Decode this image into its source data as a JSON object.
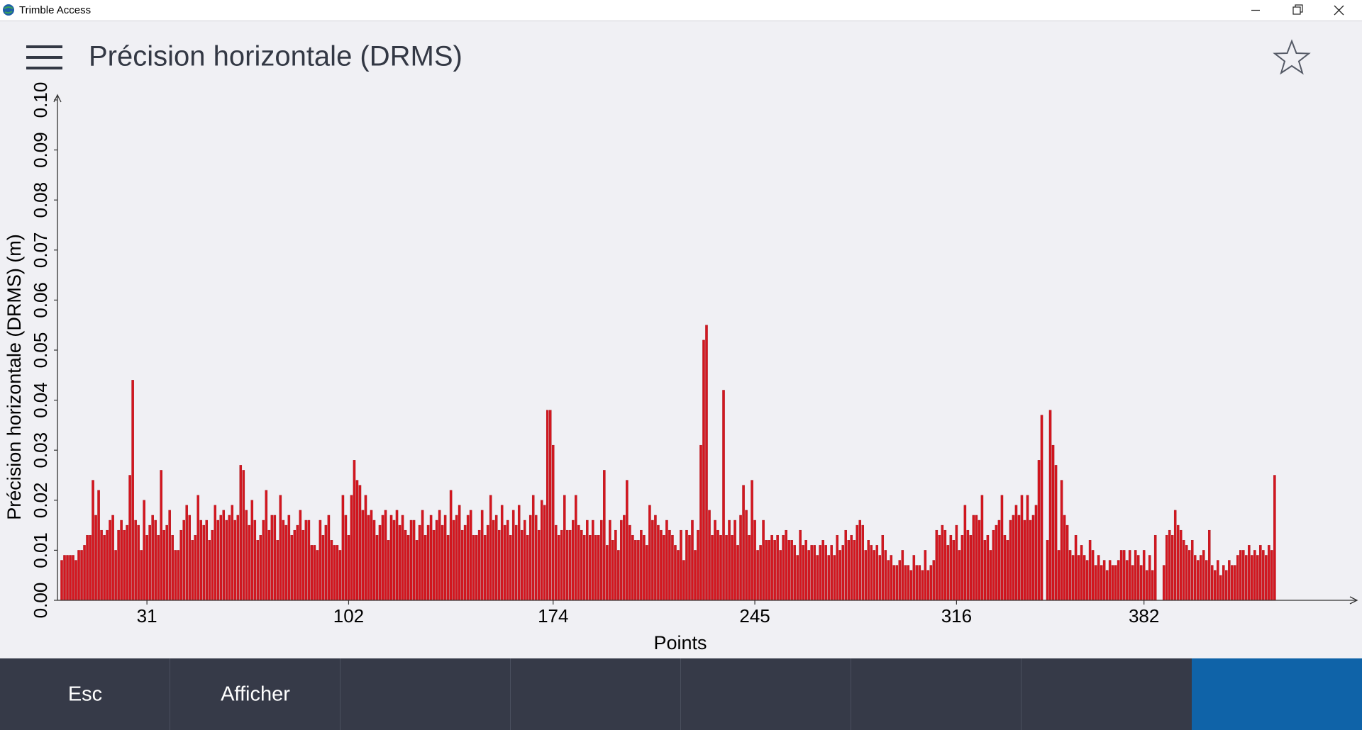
{
  "window": {
    "title": "Trimble Access"
  },
  "chart_data": {
    "type": "bar",
    "title": "Précision horizontale (DRMS)",
    "x_label": "Points",
    "y_label": "Précision horizontale (DRMS) (m)",
    "color": "#d4161f",
    "xlim": [
      0,
      457
    ],
    "xticks": [
      31,
      102,
      174,
      245,
      316,
      382
    ],
    "ylim": [
      0,
      0.1
    ],
    "yticks": [
      {
        "value": 0,
        "label": "0.00"
      },
      {
        "value": 0.01,
        "label": "0.01"
      },
      {
        "value": 0.02,
        "label": "0.02"
      },
      {
        "value": 0.03,
        "label": "0.03"
      },
      {
        "value": 0.04,
        "label": "0.04"
      },
      {
        "value": 0.05,
        "label": "0.05"
      },
      {
        "value": 0.06,
        "label": "0.06"
      },
      {
        "value": 0.07,
        "label": "0.07"
      },
      {
        "value": 0.08,
        "label": "0.08"
      },
      {
        "value": 0.09,
        "label": "0.09"
      },
      {
        "value": 0.1,
        "label": "0.10"
      }
    ],
    "grid": false,
    "x": [
      1,
      2,
      3,
      4,
      5,
      6,
      7,
      8,
      9,
      10,
      11,
      12,
      13,
      14,
      15,
      16,
      17,
      18,
      19,
      20,
      21,
      22,
      23,
      24,
      25,
      26,
      27,
      28,
      29,
      30,
      31,
      32,
      33,
      34,
      35,
      36,
      37,
      38,
      39,
      40,
      41,
      42,
      43,
      44,
      45,
      46,
      47,
      48,
      49,
      50,
      51,
      52,
      53,
      54,
      55,
      56,
      57,
      58,
      59,
      60,
      61,
      62,
      63,
      64,
      65,
      66,
      67,
      68,
      69,
      70,
      71,
      72,
      73,
      74,
      75,
      76,
      77,
      78,
      79,
      80,
      81,
      82,
      83,
      84,
      85,
      86,
      87,
      88,
      89,
      90,
      91,
      92,
      93,
      94,
      95,
      96,
      97,
      98,
      99,
      100,
      101,
      102,
      103,
      104,
      105,
      106,
      107,
      108,
      109,
      110,
      111,
      112,
      113,
      114,
      115,
      116,
      117,
      118,
      119,
      120,
      121,
      122,
      123,
      124,
      125,
      126,
      127,
      128,
      129,
      130,
      131,
      132,
      133,
      134,
      135,
      136,
      137,
      138,
      139,
      140,
      141,
      142,
      143,
      144,
      145,
      146,
      147,
      148,
      149,
      150,
      151,
      152,
      153,
      154,
      155,
      156,
      157,
      158,
      159,
      160,
      161,
      162,
      163,
      164,
      165,
      166,
      167,
      168,
      169,
      170,
      171,
      172,
      173,
      174,
      175,
      176,
      177,
      178,
      179,
      180,
      181,
      182,
      183,
      184,
      185,
      186,
      187,
      188,
      189,
      190,
      191,
      192,
      193,
      194,
      195,
      196,
      197,
      198,
      199,
      200,
      201,
      202,
      203,
      204,
      205,
      206,
      207,
      208,
      209,
      210,
      211,
      212,
      213,
      214,
      215,
      216,
      217,
      218,
      219,
      220,
      221,
      222,
      223,
      224,
      225,
      226,
      227,
      228,
      229,
      230,
      231,
      232,
      233,
      234,
      235,
      236,
      237,
      238,
      239,
      240,
      241,
      242,
      243,
      244,
      245,
      246,
      247,
      248,
      249,
      250,
      251,
      252,
      253,
      254,
      255,
      256,
      257,
      258,
      259,
      260,
      261,
      262,
      263,
      264,
      265,
      266,
      267,
      268,
      269,
      270,
      271,
      272,
      273,
      274,
      275,
      276,
      277,
      278,
      279,
      280,
      281,
      282,
      283,
      284,
      285,
      286,
      287,
      288,
      289,
      290,
      291,
      292,
      293,
      294,
      295,
      296,
      297,
      298,
      299,
      300,
      301,
      302,
      303,
      304,
      305,
      306,
      307,
      308,
      309,
      310,
      311,
      312,
      313,
      314,
      315,
      316,
      317,
      318,
      319,
      320,
      321,
      322,
      323,
      324,
      325,
      326,
      327,
      328,
      329,
      330,
      331,
      332,
      333,
      334,
      335,
      336,
      337,
      338,
      339,
      340,
      341,
      342,
      343,
      344,
      345,
      346,
      347,
      348,
      349,
      350,
      351,
      352,
      353,
      354,
      355,
      356,
      357,
      358,
      359,
      360,
      361,
      362,
      363,
      364,
      365,
      366,
      367,
      368,
      369,
      370,
      371,
      372,
      373,
      374,
      375,
      376,
      377,
      378,
      379,
      380,
      381,
      382,
      383,
      384,
      385,
      386,
      387,
      388,
      389,
      390,
      391,
      392,
      393,
      394,
      395,
      396,
      397,
      398,
      399,
      400,
      401,
      402,
      403,
      404,
      405,
      406,
      407,
      408,
      409,
      410,
      411,
      412,
      413,
      414,
      415,
      416,
      417,
      418,
      419,
      420,
      421,
      422,
      423,
      424,
      425,
      426,
      427,
      428
    ],
    "values": [
      0.008,
      0.009,
      0.009,
      0.009,
      0.009,
      0.008,
      0.01,
      0.01,
      0.011,
      0.013,
      0.013,
      0.024,
      0.017,
      0.022,
      0.014,
      0.013,
      0.014,
      0.016,
      0.017,
      0.01,
      0.014,
      0.016,
      0.014,
      0.015,
      0.025,
      0.044,
      0.016,
      0.015,
      0.01,
      0.02,
      0.013,
      0.015,
      0.017,
      0.016,
      0.013,
      0.026,
      0.014,
      0.015,
      0.018,
      0.013,
      0.01,
      0.01,
      0.014,
      0.016,
      0.019,
      0.017,
      0.012,
      0.013,
      0.021,
      0.016,
      0.015,
      0.016,
      0.012,
      0.014,
      0.019,
      0.016,
      0.017,
      0.018,
      0.016,
      0.017,
      0.019,
      0.016,
      0.017,
      0.027,
      0.026,
      0.018,
      0.015,
      0.02,
      0.016,
      0.012,
      0.013,
      0.016,
      0.022,
      0.014,
      0.017,
      0.017,
      0.012,
      0.021,
      0.016,
      0.015,
      0.017,
      0.013,
      0.014,
      0.015,
      0.018,
      0.014,
      0.016,
      0.016,
      0.011,
      0.011,
      0.01,
      0.016,
      0.013,
      0.015,
      0.017,
      0.012,
      0.011,
      0.011,
      0.01,
      0.021,
      0.017,
      0.013,
      0.021,
      0.028,
      0.024,
      0.023,
      0.018,
      0.021,
      0.017,
      0.018,
      0.016,
      0.013,
      0.015,
      0.017,
      0.018,
      0.012,
      0.017,
      0.016,
      0.018,
      0.015,
      0.017,
      0.014,
      0.013,
      0.016,
      0.016,
      0.012,
      0.015,
      0.018,
      0.013,
      0.015,
      0.017,
      0.014,
      0.016,
      0.018,
      0.015,
      0.017,
      0.013,
      0.022,
      0.016,
      0.017,
      0.019,
      0.014,
      0.015,
      0.017,
      0.018,
      0.013,
      0.013,
      0.014,
      0.018,
      0.013,
      0.015,
      0.021,
      0.016,
      0.017,
      0.014,
      0.019,
      0.015,
      0.016,
      0.013,
      0.018,
      0.015,
      0.019,
      0.014,
      0.016,
      0.013,
      0.017,
      0.021,
      0.017,
      0.014,
      0.02,
      0.019,
      0.038,
      0.038,
      0.031,
      0.015,
      0.013,
      0.014,
      0.021,
      0.014,
      0.014,
      0.016,
      0.021,
      0.015,
      0.014,
      0.013,
      0.016,
      0.013,
      0.016,
      0.013,
      0.013,
      0.016,
      0.026,
      0.011,
      0.016,
      0.012,
      0.014,
      0.01,
      0.016,
      0.017,
      0.024,
      0.015,
      0.013,
      0.012,
      0.012,
      0.014,
      0.013,
      0.011,
      0.019,
      0.016,
      0.017,
      0.015,
      0.014,
      0.013,
      0.016,
      0.014,
      0.013,
      0.011,
      0.01,
      0.014,
      0.008,
      0.014,
      0.013,
      0.016,
      0.01,
      0.014,
      0.031,
      0.052,
      0.055,
      0.018,
      0.013,
      0.016,
      0.014,
      0.013,
      0.042,
      0.013,
      0.016,
      0.013,
      0.016,
      0.011,
      0.017,
      0.023,
      0.018,
      0.013,
      0.024,
      0.016,
      0.01,
      0.011,
      0.016,
      0.012,
      0.012,
      0.013,
      0.012,
      0.013,
      0.01,
      0.013,
      0.014,
      0.012,
      0.012,
      0.011,
      0.009,
      0.014,
      0.011,
      0.012,
      0.01,
      0.011,
      0.011,
      0.009,
      0.011,
      0.012,
      0.011,
      0.009,
      0.011,
      0.009,
      0.013,
      0.01,
      0.011,
      0.014,
      0.012,
      0.013,
      0.012,
      0.015,
      0.016,
      0.015,
      0.01,
      0.012,
      0.011,
      0.01,
      0.011,
      0.009,
      0.013,
      0.01,
      0.008,
      0.009,
      0.007,
      0.007,
      0.008,
      0.01,
      0.007,
      0.007,
      0.006,
      0.009,
      0.007,
      0.007,
      0.006,
      0.01,
      0.006,
      0.007,
      0.008,
      0.014,
      0.013,
      0.015,
      0.014,
      0.011,
      0.013,
      0.012,
      0.015,
      0.01,
      0.013,
      0.019,
      0.014,
      0.013,
      0.017,
      0.017,
      0.016,
      0.021,
      0.012,
      0.013,
      0.01,
      0.014,
      0.015,
      0.016,
      0.021,
      0.013,
      0.012,
      0.016,
      0.017,
      0.019,
      0.017,
      0.021,
      0.016,
      0.021,
      0.016,
      0.017,
      0.019,
      0.028,
      0.037,
      null,
      0.012,
      0.038,
      0.031,
      0.027,
      0.01,
      0.024,
      0.017,
      0.015,
      0.01,
      0.009,
      0.013,
      0.009,
      0.011,
      0.009,
      0.008,
      0.012,
      0.01,
      0.007,
      0.009,
      0.007,
      0.008,
      0.006,
      0.008,
      0.007,
      0.007,
      0.008,
      0.01,
      0.01,
      0.008,
      0.01,
      0.007,
      0.01,
      0.009,
      0.007,
      0.01,
      0.006,
      0.009,
      0.006,
      0.013,
      null,
      null,
      0.007,
      0.013,
      0.014,
      0.013,
      0.018,
      0.015,
      0.014,
      0.012,
      0.011,
      0.01,
      0.012,
      0.009,
      0.008,
      0.009,
      0.01,
      0.008,
      0.014,
      0.007,
      0.006,
      0.008,
      0.005,
      0.007,
      0.006,
      0.008,
      0.007,
      0.007,
      0.009,
      0.01,
      0.01,
      0.009,
      0.011,
      0.009,
      0.01,
      0.009,
      0.011,
      0.01,
      0.009,
      0.011,
      0.01,
      0.025
    ]
  },
  "softkeys": [
    "Esc",
    "Afficher"
  ]
}
